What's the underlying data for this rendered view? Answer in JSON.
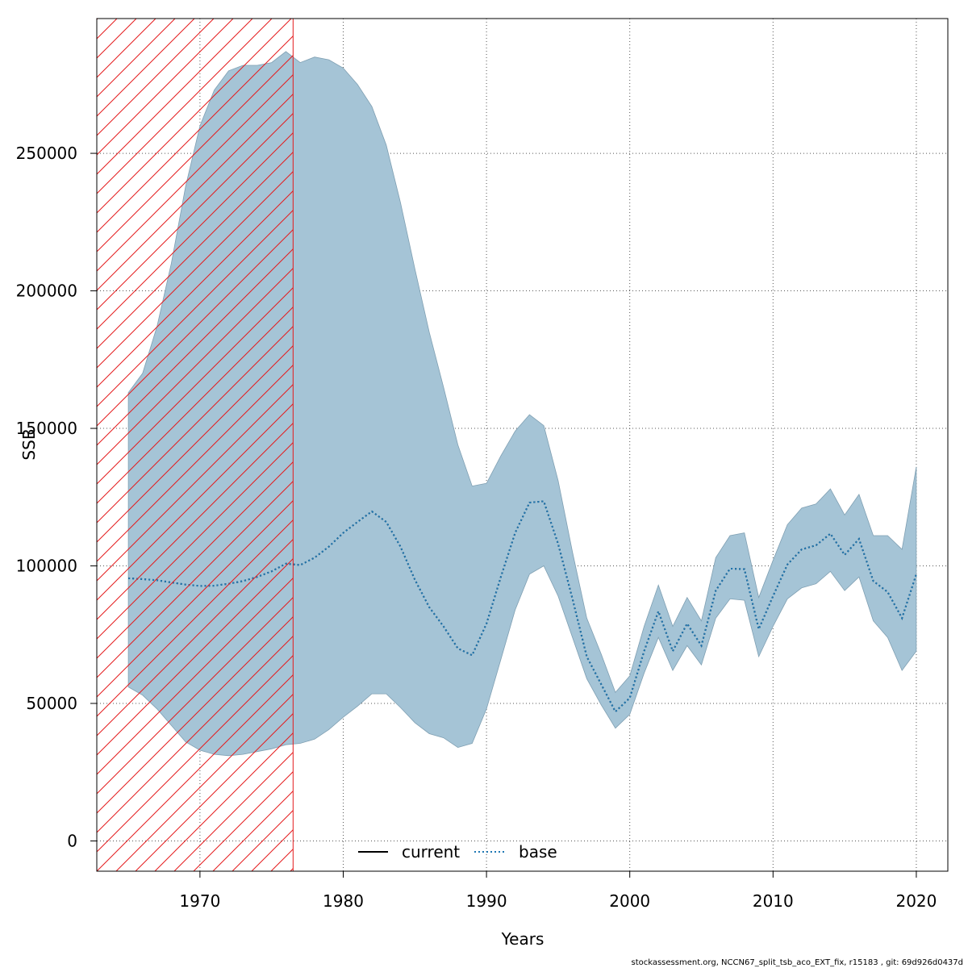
{
  "footer_text": "stockassessment.org, NCCN67_split_tsb_aco_EXT_fix, r15183 , git: 69d926d0437d",
  "chart_data": {
    "type": "area",
    "xlabel": "Years",
    "ylabel": "SSB",
    "xlim": [
      1962.8,
      2022.2
    ],
    "ylim": [
      -11000,
      299000
    ],
    "x_ticks": [
      1970,
      1980,
      1990,
      2000,
      2010,
      2020
    ],
    "y_ticks": [
      0,
      50000,
      100000,
      150000,
      200000,
      250000
    ],
    "x_tick_labels": [
      "1970",
      "1980",
      "1990",
      "2000",
      "2010",
      "2020"
    ],
    "y_tick_labels": [
      "0",
      "50000",
      "100000",
      "150000",
      "200000",
      "250000"
    ],
    "grid": true,
    "legend_position": "bottom",
    "legend": [
      {
        "label": "current",
        "style": "solid",
        "color": "#000000"
      },
      {
        "label": "base",
        "style": "dotted",
        "color": "#1f78b4"
      }
    ],
    "highlight_region": {
      "x_from": 1962.8,
      "x_to": 1976.5,
      "pattern": "hatched",
      "color": "#e41a1c"
    },
    "band_color": "#a5c4d6",
    "x": [
      1965,
      1966,
      1967,
      1968,
      1969,
      1970,
      1971,
      1972,
      1973,
      1974,
      1975,
      1976,
      1977,
      1978,
      1979,
      1980,
      1981,
      1982,
      1983,
      1984,
      1985,
      1986,
      1987,
      1988,
      1989,
      1990,
      1991,
      1992,
      1993,
      1994,
      1995,
      1996,
      1997,
      1998,
      1999,
      2000,
      2001,
      2002,
      2003,
      2004,
      2005,
      2006,
      2007,
      2008,
      2009,
      2010,
      2011,
      2012,
      2013,
      2014,
      2015,
      2016,
      2017,
      2018,
      2019,
      2020
    ],
    "series": [
      {
        "name": "current",
        "style": "solid",
        "values": [
          95500,
          95200,
          94800,
          94000,
          93200,
          92700,
          92800,
          93500,
          94500,
          96000,
          98000,
          100800,
          100300,
          103000,
          107000,
          112000,
          116000,
          119800,
          116000,
          107000,
          95000,
          85000,
          78000,
          70000,
          67500,
          79000,
          96000,
          112000,
          123000,
          123500,
          108000,
          88000,
          67000,
          57000,
          47000,
          52000,
          69000,
          83500,
          69000,
          79000,
          71000,
          91000,
          99000,
          98800,
          77000,
          89000,
          100500,
          106000,
          107500,
          111700,
          104000,
          109800,
          94500,
          90500,
          81000,
          97000
        ]
      },
      {
        "name": "base",
        "style": "dotted",
        "values": [
          95500,
          95200,
          94800,
          94000,
          93200,
          92700,
          92800,
          93500,
          94500,
          96000,
          98000,
          100800,
          100300,
          103000,
          107000,
          112000,
          116000,
          119800,
          116000,
          107000,
          95000,
          85000,
          78000,
          70000,
          67500,
          79000,
          96000,
          112000,
          123000,
          123500,
          108000,
          88000,
          67000,
          57000,
          47000,
          52000,
          69000,
          83500,
          69000,
          79000,
          71000,
          91000,
          99000,
          98800,
          77000,
          89000,
          100500,
          106000,
          107500,
          111700,
          104000,
          109800,
          94500,
          90500,
          81000,
          97000
        ]
      }
    ],
    "upper": [
      163000,
      170000,
      187000,
      210000,
      238000,
      260000,
      273000,
      280000,
      282000,
      282000,
      283000,
      287000,
      283000,
      285000,
      284000,
      281000,
      275000,
      267000,
      253000,
      232000,
      208000,
      185000,
      165000,
      144000,
      129000,
      130000,
      140000,
      149000,
      155000,
      151000,
      131000,
      105000,
      81000,
      68000,
      54000,
      60000,
      78000,
      93000,
      78000,
      88500,
      80000,
      103000,
      111000,
      112000,
      88500,
      102000,
      115000,
      121000,
      122500,
      128000,
      118500,
      126000,
      111000,
      111000,
      106000,
      136000
    ],
    "lower": [
      56000,
      53000,
      48000,
      42000,
      36000,
      33000,
      31500,
      31000,
      31500,
      32500,
      33500,
      35000,
      35500,
      37000,
      40500,
      45000,
      49000,
      53500,
      53500,
      48500,
      43000,
      39000,
      37500,
      34000,
      35500,
      48000,
      66000,
      84000,
      97000,
      100000,
      89000,
      74000,
      59000,
      49500,
      41000,
      46000,
      61000,
      74000,
      62000,
      71000,
      64000,
      81000,
      88000,
      87500,
      67000,
      78000,
      88000,
      92000,
      93500,
      98000,
      91000,
      96000,
      80000,
      74000,
      62000,
      69000
    ]
  }
}
